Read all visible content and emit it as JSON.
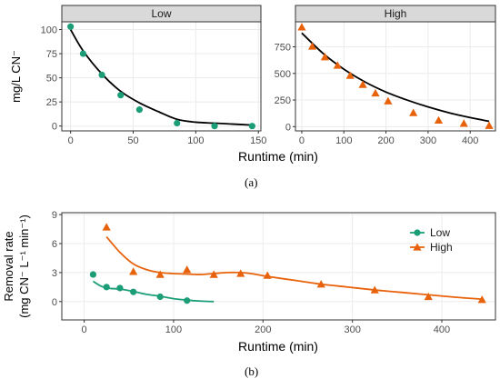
{
  "figure": {
    "caption_a": "(a)",
    "caption_b": "(b)"
  },
  "colors": {
    "low": "#1b9e77",
    "high": "#e8620c",
    "fit": "#000000",
    "strip_bg": "#d9d9d9",
    "grid": "#ebebeb"
  },
  "chart_data": [
    {
      "id": "a",
      "type": "scatter",
      "ylabel": "mg/L CN⁻",
      "xlabel": "Runtime (min)",
      "facets": [
        {
          "strip": "Low",
          "marker": "circle",
          "color": "#1b9e77",
          "xlim": [
            -7,
            152
          ],
          "ylim": [
            -5,
            108
          ],
          "xticks": [
            0,
            50,
            100,
            150
          ],
          "yticks": [
            0,
            25,
            50,
            75,
            100
          ],
          "points": {
            "x": [
              0,
              10,
              25,
              40,
              55,
              85,
              115,
              145
            ],
            "y": [
              103,
              75,
              53,
              32,
              17,
              3,
              0,
              0
            ]
          },
          "fit": {
            "x": [
              0,
              10,
              25,
              40,
              55,
              70,
              85,
              100,
              115,
              130,
              145
            ],
            "y": [
              100,
              78,
              54,
              36,
              24,
              15,
              7,
              4,
              3,
              2,
              1
            ]
          }
        },
        {
          "strip": "High",
          "marker": "triangle",
          "color": "#e8620c",
          "xlim": [
            -15,
            460
          ],
          "ylim": [
            -40,
            985
          ],
          "xticks": [
            0,
            100,
            200,
            300,
            400
          ],
          "yticks": [
            0,
            250,
            500,
            750
          ],
          "points": {
            "x": [
              0,
              25,
              55,
              85,
              115,
              145,
              175,
              205,
              265,
              325,
              385,
              445
            ],
            "y": [
              935,
              755,
              655,
              575,
              480,
              395,
              315,
              240,
              130,
              60,
              30,
              10
            ]
          },
          "fit": {
            "x": [
              0,
              50,
              100,
              150,
              200,
              250,
              300,
              350,
              400,
              445
            ],
            "y": [
              880,
              690,
              540,
              420,
              325,
              250,
              185,
              130,
              85,
              50
            ]
          }
        }
      ]
    },
    {
      "id": "b",
      "type": "scatter",
      "ylabel": [
        "Removal rate",
        "(mg CN⁻ L⁻¹ min⁻¹)"
      ],
      "xlabel": "Runtime (min)",
      "xlim": [
        -25,
        460
      ],
      "ylim": [
        -1.9,
        9.2
      ],
      "xticks": [
        0,
        100,
        200,
        300,
        400
      ],
      "yticks": [
        0,
        3,
        6,
        9
      ],
      "legend": {
        "position": "top-right"
      },
      "series": [
        {
          "name": "Low",
          "marker": "circle",
          "color": "#1b9e77",
          "x": [
            10,
            25,
            40,
            55,
            85,
            115
          ],
          "y": [
            2.8,
            1.5,
            1.4,
            1.0,
            0.5,
            0.1
          ],
          "smooth": {
            "x": [
              10,
              20,
              30,
              40,
              55,
              70,
              85,
              100,
              115,
              130,
              145
            ],
            "y": [
              2.1,
              1.55,
              1.35,
              1.3,
              1.05,
              0.75,
              0.55,
              0.3,
              0.15,
              0.05,
              0.0
            ]
          }
        },
        {
          "name": "High",
          "marker": "triangle",
          "color": "#e8620c",
          "x": [
            25,
            55,
            85,
            115,
            145,
            175,
            205,
            265,
            325,
            385,
            445
          ],
          "y": [
            7.7,
            3.1,
            2.8,
            3.3,
            2.8,
            2.9,
            2.7,
            1.8,
            1.2,
            0.5,
            0.2
          ],
          "smooth": {
            "x": [
              25,
              40,
              55,
              70,
              85,
              100,
              115,
              130,
              145,
              160,
              175,
              190,
              205,
              235,
              265,
              295,
              325,
              355,
              385,
              415,
              445
            ],
            "y": [
              6.7,
              5.1,
              3.9,
              3.3,
              3.0,
              2.9,
              2.85,
              2.8,
              2.9,
              3.0,
              3.0,
              2.85,
              2.6,
              2.2,
              1.8,
              1.5,
              1.2,
              0.95,
              0.7,
              0.45,
              0.25
            ]
          }
        }
      ]
    }
  ]
}
